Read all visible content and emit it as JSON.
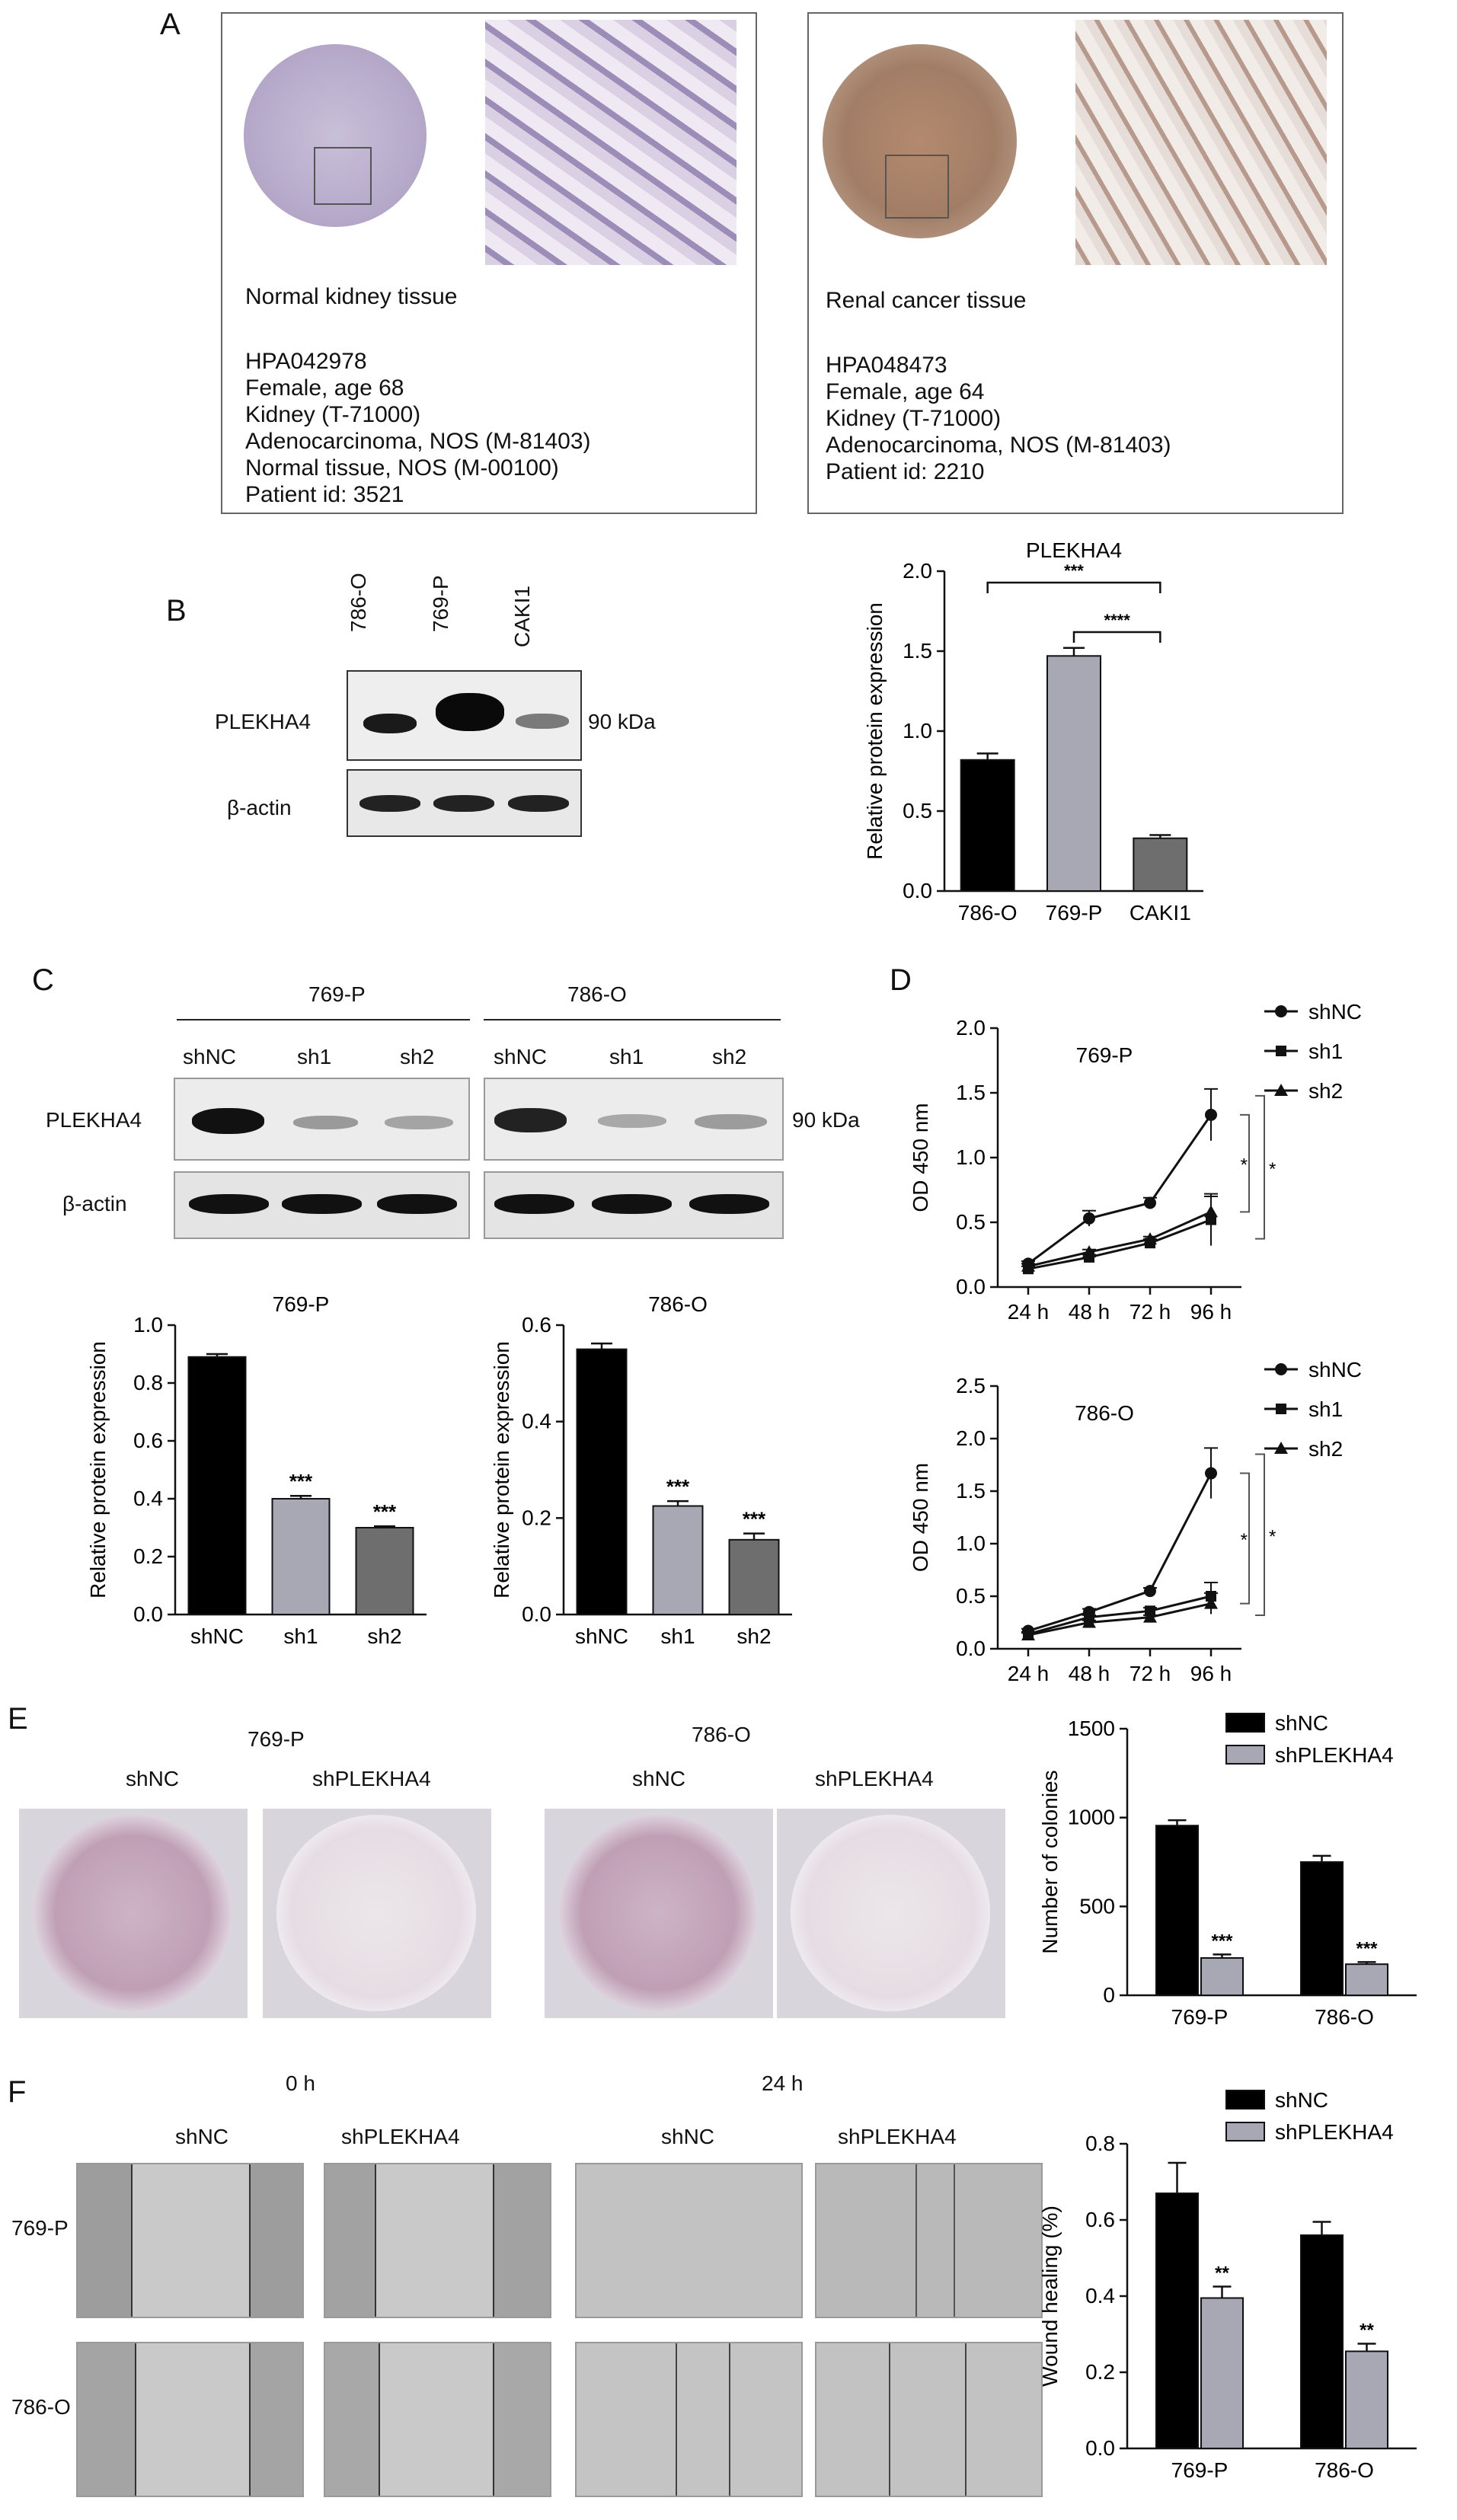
{
  "panel_letters": {
    "a": "A",
    "b": "B",
    "c": "C",
    "d": "D",
    "e": "E",
    "f": "F"
  },
  "panel_a": {
    "normal": {
      "heading": "Normal kidney tissue",
      "lines": [
        "HPA042978",
        "Female, age 68",
        "Kidney (T-71000)",
        "Adenocarcinoma, NOS (M-81403)",
        "Normal tissue, NOS (M-00100)",
        "Patient id: 3521"
      ]
    },
    "cancer": {
      "heading": "Renal cancer tissue",
      "lines": [
        "HPA048473",
        "Female, age 64",
        "Kidney (T-71000)",
        "Adenocarcinoma, NOS (M-81403)",
        "Patient id: 2210"
      ]
    }
  },
  "panel_b": {
    "lanes": [
      "786-O",
      "769-P",
      "CAKI1"
    ],
    "protein": "PLEKHA4",
    "loading": "β-actin",
    "size": "90 kDa"
  },
  "panel_c": {
    "groups": [
      {
        "name": "769-P",
        "lanes": [
          "shNC",
          "sh1",
          "sh2"
        ]
      },
      {
        "name": "786-O",
        "lanes": [
          "shNC",
          "sh1",
          "sh2"
        ]
      }
    ],
    "protein": "PLEKHA4",
    "loading": "β-actin",
    "size": "90 kDa"
  },
  "panel_e": {
    "groups": [
      {
        "name": "769-P",
        "lanes": [
          "shNC",
          "shPLEKHA4"
        ]
      },
      {
        "name": "786-O",
        "lanes": [
          "shNC",
          "shPLEKHA4"
        ]
      }
    ]
  },
  "panel_f": {
    "times": [
      "0 h",
      "24 h"
    ],
    "columns": [
      "shNC",
      "shPLEKHA4",
      "shNC",
      "shPLEKHA4"
    ],
    "rows": [
      "769-P",
      "786-O"
    ]
  },
  "chart_data": [
    {
      "id": "b_bar",
      "type": "bar",
      "title": "PLEKHA4",
      "ylabel": "Relative protein expression",
      "ylim": [
        0,
        2.0
      ],
      "yticks": [
        "0.0",
        "0.5",
        "1.0",
        "1.5",
        "2.0"
      ],
      "categories": [
        "786-O",
        "769-P",
        "CAKI1"
      ],
      "values": [
        0.82,
        1.47,
        0.33
      ],
      "errors": [
        0.04,
        0.05,
        0.02
      ],
      "colors": [
        "#000000",
        "#a8a8b4",
        "#6e6e6e"
      ],
      "brackets": [
        {
          "from": 0,
          "to": 2,
          "label": "***"
        },
        {
          "from": 1,
          "to": 2,
          "label": "****"
        }
      ]
    },
    {
      "id": "c_bar1",
      "type": "bar",
      "title": "769-P",
      "ylabel": "Relative protein expression",
      "ylim": [
        0,
        1.0
      ],
      "yticks": [
        "0.0",
        "0.2",
        "0.4",
        "0.6",
        "0.8",
        "1.0"
      ],
      "categories": [
        "shNC",
        "sh1",
        "sh2"
      ],
      "values": [
        0.89,
        0.4,
        0.3
      ],
      "errors": [
        0.01,
        0.01,
        0.005
      ],
      "colors": [
        "#000000",
        "#a8a8b4",
        "#6e6e6e"
      ],
      "labels": [
        "",
        "***",
        "***"
      ]
    },
    {
      "id": "c_bar2",
      "type": "bar",
      "title": "786-O",
      "ylabel": "Relative protein expression",
      "ylim": [
        0,
        0.6
      ],
      "yticks": [
        "0.0",
        "0.2",
        "0.4",
        "0.6"
      ],
      "categories": [
        "shNC",
        "sh1",
        "sh2"
      ],
      "values": [
        0.55,
        0.225,
        0.155
      ],
      "errors": [
        0.012,
        0.01,
        0.013
      ],
      "colors": [
        "#000000",
        "#a8a8b4",
        "#6e6e6e"
      ],
      "labels": [
        "",
        "***",
        "***"
      ]
    },
    {
      "id": "d_line1",
      "type": "line",
      "title": "769-P",
      "ylabel": "OD 450 nm",
      "ylim": [
        0,
        2.0
      ],
      "yticks": [
        "0.0",
        "0.5",
        "1.0",
        "1.5",
        "2.0"
      ],
      "x": [
        "24 h",
        "48 h",
        "72 h",
        "96 h"
      ],
      "series": [
        {
          "name": "shNC",
          "marker": "circle",
          "values": [
            0.18,
            0.53,
            0.65,
            1.33
          ],
          "errors": [
            0.02,
            0.06,
            0.04,
            0.2
          ]
        },
        {
          "name": "sh1",
          "marker": "square",
          "values": [
            0.14,
            0.23,
            0.34,
            0.52
          ],
          "errors": [
            0.02,
            0.02,
            0.03,
            0.2
          ]
        },
        {
          "name": "sh2",
          "marker": "triangle",
          "values": [
            0.16,
            0.27,
            0.37,
            0.58
          ],
          "errors": [
            0.02,
            0.02,
            0.02,
            0.12
          ]
        }
      ],
      "sig": [
        "*",
        "*"
      ]
    },
    {
      "id": "d_line2",
      "type": "line",
      "title": "786-O",
      "ylabel": "OD 450 nm",
      "ylim": [
        0,
        2.5
      ],
      "yticks": [
        "0.0",
        "0.5",
        "1.0",
        "1.5",
        "2.0",
        "2.5"
      ],
      "x": [
        "24 h",
        "48 h",
        "72 h",
        "96 h"
      ],
      "series": [
        {
          "name": "shNC",
          "marker": "circle",
          "values": [
            0.17,
            0.35,
            0.55,
            1.67
          ],
          "errors": [
            0.02,
            0.03,
            0.03,
            0.24
          ]
        },
        {
          "name": "sh1",
          "marker": "square",
          "values": [
            0.14,
            0.3,
            0.36,
            0.5
          ],
          "errors": [
            0.02,
            0.02,
            0.03,
            0.13
          ]
        },
        {
          "name": "sh2",
          "marker": "triangle",
          "values": [
            0.13,
            0.25,
            0.3,
            0.43
          ],
          "errors": [
            0.02,
            0.02,
            0.02,
            0.1
          ]
        }
      ],
      "sig": [
        "*",
        "*"
      ]
    },
    {
      "id": "e_bar",
      "type": "bar",
      "ylabel": "Number of colonies",
      "ylim": [
        0,
        1500
      ],
      "yticks": [
        "0",
        "500",
        "1000",
        "1500"
      ],
      "categories": [
        "769-P",
        "786-O"
      ],
      "series": [
        {
          "name": "shNC",
          "color": "#000000",
          "values": [
            955,
            750
          ],
          "errors": [
            30,
            35
          ]
        },
        {
          "name": "shPLEKHA4",
          "color": "#a8a8b4",
          "values": [
            210,
            175
          ],
          "errors": [
            20,
            12
          ]
        }
      ],
      "labels": [
        "***",
        "***"
      ]
    },
    {
      "id": "f_bar",
      "type": "bar",
      "ylabel": "Wound healing (%)",
      "ylim": [
        0,
        0.8
      ],
      "yticks": [
        "0.0",
        "0.2",
        "0.4",
        "0.6",
        "0.8"
      ],
      "categories": [
        "769-P",
        "786-O"
      ],
      "series": [
        {
          "name": "shNC",
          "color": "#000000",
          "values": [
            0.67,
            0.56
          ],
          "errors": [
            0.08,
            0.035
          ]
        },
        {
          "name": "shPLEKHA4",
          "color": "#a8a8b4",
          "values": [
            0.395,
            0.255
          ],
          "errors": [
            0.03,
            0.02
          ]
        }
      ],
      "labels": [
        "**",
        "**"
      ]
    }
  ]
}
